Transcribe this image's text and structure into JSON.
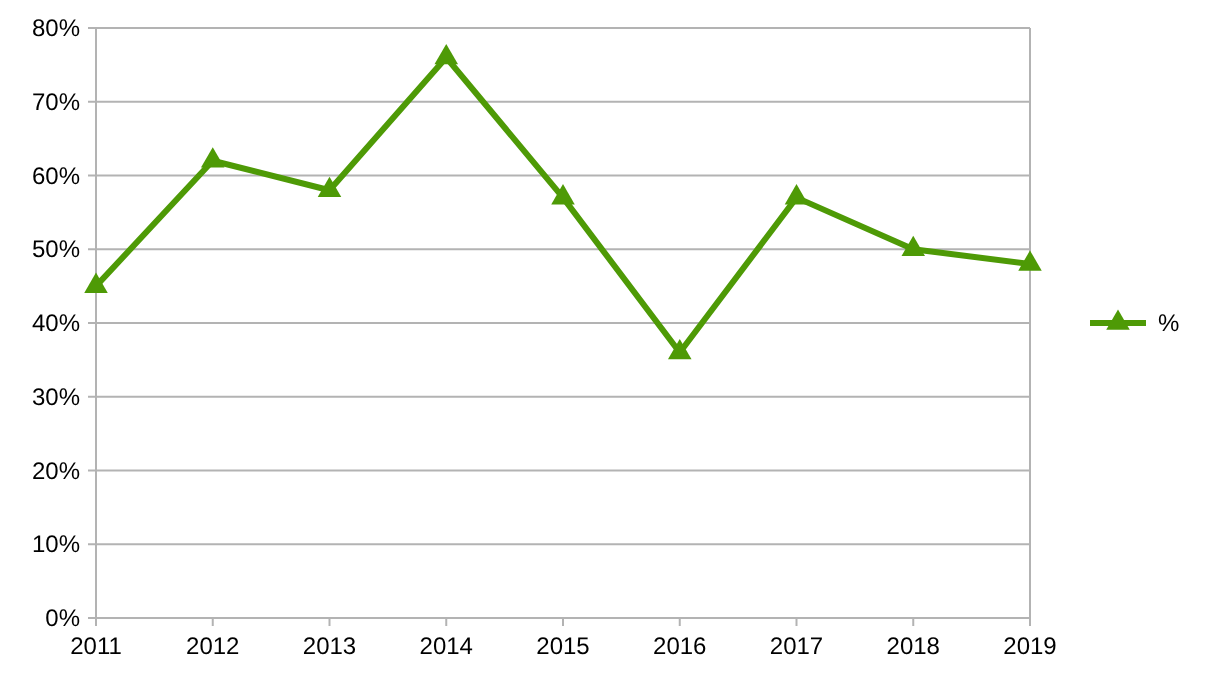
{
  "chart_data": {
    "type": "line",
    "x": [
      2011,
      2012,
      2013,
      2014,
      2015,
      2016,
      2017,
      2018,
      2019
    ],
    "series": [
      {
        "name": "%",
        "color": "#4e9a06",
        "values": [
          45,
          62,
          58,
          76,
          57,
          36,
          57,
          50,
          48
        ]
      }
    ],
    "xlim": [
      2011,
      2019
    ],
    "xticks": [
      2011,
      2012,
      2013,
      2014,
      2015,
      2016,
      2017,
      2018,
      2019
    ],
    "ylim": [
      0,
      80
    ],
    "yticks": [
      {
        "value": 0,
        "label": "0%"
      },
      {
        "value": 10,
        "label": "10%"
      },
      {
        "value": 20,
        "label": "20%"
      },
      {
        "value": 30,
        "label": "30%"
      },
      {
        "value": 40,
        "label": "40%"
      },
      {
        "value": 50,
        "label": "50%"
      },
      {
        "value": 60,
        "label": "60%"
      },
      {
        "value": 70,
        "label": "70%"
      },
      {
        "value": 80,
        "label": "80%"
      }
    ],
    "grid": "y",
    "legend": "right",
    "marker": "triangle",
    "line_style": "solid"
  }
}
